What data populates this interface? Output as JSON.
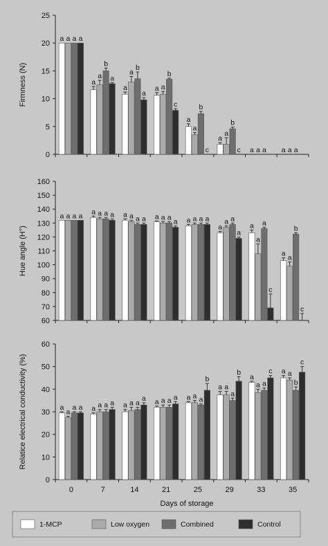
{
  "colors": {
    "background": "#c8c8c8",
    "series": [
      "#ffffff",
      "#aaaaaa",
      "#6e6e6e",
      "#2e2e2e"
    ]
  },
  "legend": {
    "items": [
      "1-MCP",
      "Low oxygen",
      "Combined",
      "Control"
    ]
  },
  "xlabel": "Days of storage",
  "chart_data": [
    {
      "type": "bar",
      "categories": [
        "0",
        "7",
        "14",
        "21",
        "25",
        "29",
        "33",
        "35"
      ],
      "ylabel": "Firmness (N)",
      "ylim": [
        0,
        25
      ],
      "yticks": [
        0,
        5,
        10,
        15,
        20,
        25
      ],
      "series": [
        {
          "name": "1-MCP",
          "values": [
            20,
            11.6,
            10.8,
            10.6,
            5.0,
            1.8,
            0,
            0
          ],
          "errors": [
            0,
            0.6,
            0.4,
            0.5,
            0.5,
            0.3,
            0,
            0
          ],
          "letters": [
            "a",
            "a",
            "a",
            "a",
            "a",
            "a",
            "a",
            "a"
          ]
        },
        {
          "name": "Low oxygen",
          "values": [
            20,
            12.5,
            13.0,
            10.8,
            3.5,
            1.8,
            0,
            0
          ],
          "errors": [
            0,
            0.8,
            1.0,
            0.5,
            0.4,
            1.2,
            0,
            0
          ],
          "letters": [
            "a",
            "a",
            "a",
            "a",
            "a",
            "a",
            "a",
            "a"
          ]
        },
        {
          "name": "Combined",
          "values": [
            20,
            15.0,
            13.6,
            13.5,
            7.3,
            4.6,
            0,
            0
          ],
          "errors": [
            0,
            0.5,
            1.2,
            0.2,
            0.4,
            0.3,
            0,
            0
          ],
          "letters": [
            "a",
            "b",
            "b",
            "b",
            "b",
            "b",
            "a",
            "a"
          ]
        },
        {
          "name": "Control",
          "values": [
            20,
            12.7,
            9.8,
            7.9,
            0,
            0,
            0,
            0
          ],
          "errors": [
            0,
            0.2,
            0.4,
            0.3,
            0,
            0,
            0,
            0
          ],
          "letters": [
            "a",
            "a",
            "a",
            "c",
            "c",
            "c",
            "",
            ""
          ]
        }
      ]
    },
    {
      "type": "bar",
      "categories": [
        "0",
        "7",
        "14",
        "21",
        "25",
        "29",
        "33",
        "35"
      ],
      "ylabel": "Hue angle (H°)",
      "ylim": [
        60,
        160
      ],
      "yticks": [
        60,
        70,
        80,
        90,
        100,
        110,
        120,
        130,
        140,
        150,
        160
      ],
      "series": [
        {
          "name": "1-MCP",
          "values": [
            132,
            134,
            132,
            131,
            128,
            123,
            123,
            103
          ],
          "errors": [
            0,
            1,
            1,
            0.5,
            1,
            1,
            2,
            2
          ],
          "letters": [
            "a",
            "a",
            "a",
            "a",
            "a",
            "a",
            "a",
            "a"
          ]
        },
        {
          "name": "Low oxygen",
          "values": [
            132,
            133,
            131,
            130,
            129,
            127,
            108,
            99
          ],
          "errors": [
            0,
            1,
            1,
            1,
            1,
            1,
            7,
            3
          ],
          "letters": [
            "a",
            "a",
            "a",
            "a",
            "a",
            "a",
            "a",
            "a"
          ]
        },
        {
          "name": "Combined",
          "values": [
            132,
            133,
            129,
            130,
            129,
            129,
            126,
            122
          ],
          "errors": [
            0,
            1,
            1,
            1,
            1,
            1,
            1,
            1
          ],
          "letters": [
            "a",
            "a",
            "a",
            "a",
            "a",
            "a",
            "a",
            "b"
          ]
        },
        {
          "name": "Control",
          "values": [
            132,
            132,
            129,
            127,
            129,
            119,
            69,
            60
          ],
          "errors": [
            0,
            1,
            1,
            1,
            1,
            1,
            10,
            5
          ],
          "letters": [
            "a",
            "a",
            "a",
            "a",
            "a",
            "a",
            "c",
            "c"
          ]
        }
      ]
    },
    {
      "type": "bar",
      "categories": [
        "0",
        "7",
        "14",
        "21",
        "25",
        "29",
        "33",
        "35"
      ],
      "ylabel": "Relatice electrical conductivity (%)",
      "ylim": [
        0,
        60
      ],
      "yticks": [
        0,
        10,
        20,
        30,
        40,
        50,
        60
      ],
      "series": [
        {
          "name": "1-MCP",
          "values": [
            29.5,
            29,
            30,
            32,
            34,
            37.5,
            43,
            45
          ],
          "errors": [
            0.5,
            0.5,
            1,
            0.5,
            0.5,
            1.5,
            0.5,
            1
          ],
          "letters": [
            "a",
            "a",
            "a",
            "a",
            "a",
            "a",
            "a",
            "a"
          ]
        },
        {
          "name": "Low oxygen",
          "values": [
            27.5,
            30,
            30.5,
            32,
            34,
            37.5,
            38.5,
            44
          ],
          "errors": [
            0.5,
            1,
            1.5,
            1,
            1,
            1.5,
            1.5,
            1
          ],
          "letters": [
            "a",
            "a",
            "a",
            "a",
            "a",
            "a",
            "a",
            "a"
          ]
        },
        {
          "name": "Combined",
          "values": [
            29.5,
            30,
            31,
            32,
            33,
            35,
            39.5,
            39.5
          ],
          "errors": [
            0.5,
            1,
            1,
            1,
            0.5,
            1,
            1,
            1.5
          ],
          "letters": [
            "a",
            "a",
            "a",
            "a",
            "a",
            "a",
            "a",
            "b"
          ]
        },
        {
          "name": "Control",
          "values": [
            29.5,
            31,
            33,
            33.5,
            39.5,
            43.5,
            45,
            47.5
          ],
          "errors": [
            0.5,
            1,
            1,
            1,
            3,
            2,
            1,
            2.5
          ],
          "letters": [
            "a",
            "a",
            "a",
            "a",
            "b",
            "b",
            "c",
            "c"
          ]
        }
      ]
    }
  ]
}
